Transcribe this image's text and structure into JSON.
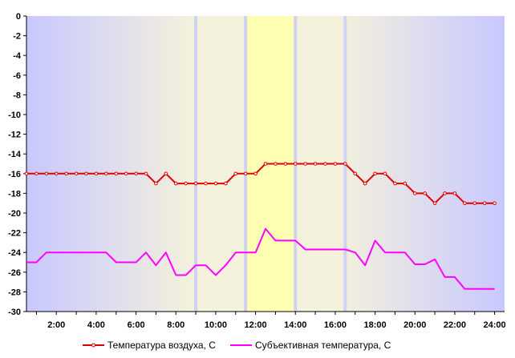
{
  "chart_data": {
    "type": "line",
    "title": "",
    "xlabel": "",
    "ylabel": "",
    "ylim": [
      -30,
      0
    ],
    "y_ticks": [
      0,
      -2,
      -4,
      -6,
      -8,
      -10,
      -12,
      -14,
      -16,
      -18,
      -20,
      -22,
      -24,
      -26,
      -28,
      -30
    ],
    "x_range": [
      0.5,
      24.5
    ],
    "x_ticks": [
      {
        "x": 2,
        "label": "2:00"
      },
      {
        "x": 4,
        "label": "4:00"
      },
      {
        "x": 6,
        "label": "6:00"
      },
      {
        "x": 8,
        "label": "8:00"
      },
      {
        "x": 10,
        "label": "10:00"
      },
      {
        "x": 12,
        "label": "12:00"
      },
      {
        "x": 14,
        "label": "14:00"
      },
      {
        "x": 16,
        "label": "16:00"
      },
      {
        "x": 18,
        "label": "18:00"
      },
      {
        "x": 20,
        "label": "20:00"
      },
      {
        "x": 22,
        "label": "22:00"
      },
      {
        "x": 24,
        "label": "24:00"
      }
    ],
    "background": {
      "edge_color": "#c8c8ff",
      "mid_color": "#f4f1dc",
      "day_color": "#ffffb4",
      "day_band": [
        11.5,
        14.0
      ],
      "twilight_lines": [
        9.0,
        11.5,
        14.0,
        16.5
      ],
      "twilight_line_color": "#cfd2f0"
    },
    "series": [
      {
        "name": "Температура воздуха, С",
        "color": "#dd0000",
        "marker": "circle",
        "x": [
          0.5,
          1,
          1.5,
          2,
          2.5,
          3,
          3.5,
          4,
          4.5,
          5,
          5.5,
          6,
          6.5,
          7,
          7.5,
          8,
          8.5,
          9,
          9.5,
          10,
          10.5,
          11,
          11.5,
          12,
          12.5,
          13,
          13.5,
          14,
          14.5,
          15,
          15.5,
          16,
          16.5,
          17,
          17.5,
          18,
          18.5,
          19,
          19.5,
          20,
          20.5,
          21,
          21.5,
          22,
          22.5,
          23,
          23.5,
          24
        ],
        "values": [
          -16,
          -16,
          -16,
          -16,
          -16,
          -16,
          -16,
          -16,
          -16,
          -16,
          -16,
          -16,
          -16,
          -17,
          -16,
          -17,
          -17,
          -17,
          -17,
          -17,
          -17,
          -16,
          -16,
          -16,
          -15,
          -15,
          -15,
          -15,
          -15,
          -15,
          -15,
          -15,
          -15,
          -16,
          -17,
          -16,
          -16,
          -17,
          -17,
          -18,
          -18,
          -19,
          -18,
          -18,
          -19,
          -19,
          -19,
          -19
        ]
      },
      {
        "name": "Субъективная температура, С",
        "color": "#ff00ff",
        "marker": "none",
        "x": [
          0.5,
          1,
          1.5,
          2,
          2.5,
          3,
          3.5,
          4,
          4.5,
          5,
          5.5,
          6,
          6.5,
          7,
          7.5,
          8,
          8.5,
          9,
          9.5,
          10,
          10.5,
          11,
          11.5,
          12,
          12.5,
          13,
          13.5,
          14,
          14.5,
          15,
          15.5,
          16,
          16.5,
          17,
          17.5,
          18,
          18.5,
          19,
          19.5,
          20,
          20.5,
          21,
          21.5,
          22,
          22.5,
          23,
          23.5,
          24
        ],
        "values": [
          -25,
          -25,
          -24,
          -24,
          -24,
          -24,
          -24,
          -24,
          -24,
          -25,
          -25,
          -25,
          -24,
          -25.3,
          -24,
          -26.3,
          -26.3,
          -25.3,
          -25.3,
          -26.3,
          -25.3,
          -24,
          -24,
          -24,
          -21.6,
          -22.8,
          -22.8,
          -22.8,
          -23.7,
          -23.7,
          -23.7,
          -23.7,
          -23.7,
          -24,
          -25.3,
          -22.8,
          -24,
          -24,
          -24,
          -25.2,
          -25.2,
          -24.7,
          -26.5,
          -26.5,
          -27.7,
          -27.7,
          -27.7,
          -27.7
        ]
      }
    ],
    "legend": "bottom"
  }
}
